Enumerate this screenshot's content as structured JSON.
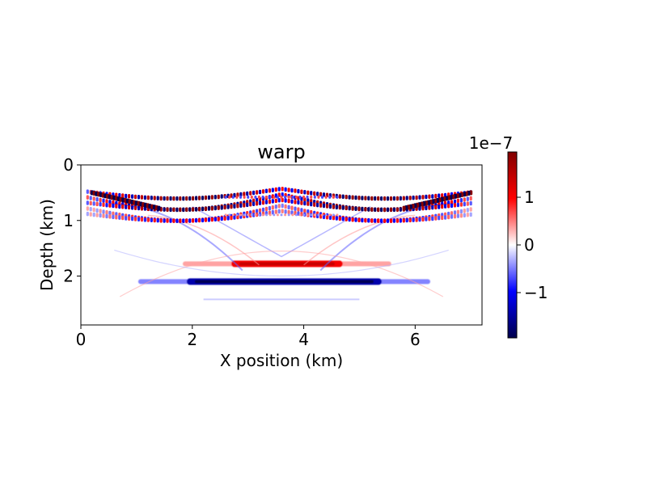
{
  "chart_data": {
    "type": "heatmap",
    "title": "warp",
    "xlabel": "X position (km)",
    "ylabel": "Depth (km)",
    "xlim": [
      0,
      7.2
    ],
    "ylim": [
      2.88,
      0
    ],
    "x_ticks": [
      0,
      2,
      4,
      6
    ],
    "x_tick_labels": [
      "0",
      "2",
      "4",
      "6"
    ],
    "y_ticks": [
      0,
      1,
      2
    ],
    "y_tick_labels": [
      "0",
      "1",
      "2"
    ],
    "grid": false,
    "colormap": "seismic",
    "colormap_stops": [
      "#00004c",
      "#0000ff",
      "#ffffff",
      "#ff0000",
      "#800000"
    ],
    "colorbar": {
      "range": [
        -1.95,
        1.95
      ],
      "ticks": [
        -1,
        0,
        1
      ],
      "tick_labels": [
        "−1",
        "0",
        "1"
      ],
      "offset_label": "1e−7"
    },
    "features": [
      {
        "kind": "flat_reflector",
        "sign": "negative",
        "depth_km": 2.1,
        "x_range_km": [
          1.9,
          5.4
        ],
        "peak_amplitude": -1.9
      },
      {
        "kind": "flat_reflector",
        "sign": "positive",
        "depth_km": 1.78,
        "x_range_km": [
          2.7,
          4.7
        ],
        "peak_amplitude": 1.4
      },
      {
        "kind": "shallow_oscillating_band",
        "depth_range_km": [
          0.45,
          1.0
        ],
        "x_range_km": [
          0.1,
          7.1
        ],
        "peak_amplitude": 1.8
      }
    ]
  }
}
